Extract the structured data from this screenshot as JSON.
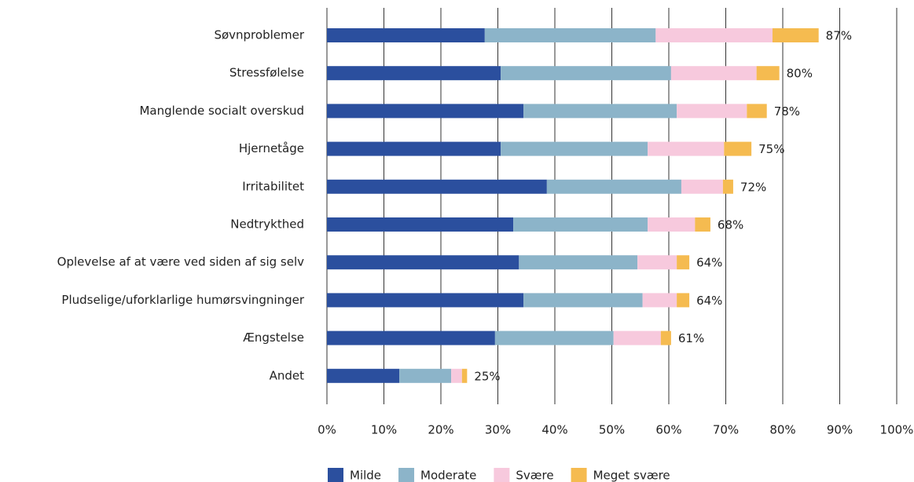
{
  "chart_data": {
    "type": "stacked_barh",
    "categories": [
      "Søvnproblemer",
      "Stressfølelse",
      "Manglende socialt overskud",
      "Hjernetåge",
      "Irritabilitet",
      "Nedtrykthed",
      "Oplevelse af at være ved siden af sig selv",
      "Pludselige/uforklarlige humørsvingninger",
      "Ængstelse",
      "Andet"
    ],
    "series": [
      {
        "name": "Milde",
        "color": "#2b4f9e",
        "values": [
          27.7,
          30.5,
          34.5,
          30.5,
          38.6,
          32.7,
          33.7,
          34.5,
          29.5,
          12.7
        ]
      },
      {
        "name": "Moderate",
        "color": "#8cb4c9",
        "values": [
          30.0,
          29.9,
          26.9,
          25.8,
          23.6,
          23.6,
          20.8,
          20.9,
          20.8,
          9.1
        ]
      },
      {
        "name": "Svære",
        "color": "#f7c9dd",
        "values": [
          20.5,
          15.0,
          12.3,
          13.4,
          7.3,
          8.3,
          6.9,
          6.0,
          8.3,
          1.9
        ]
      },
      {
        "name": "Meget svære",
        "color": "#f5bb50",
        "values": [
          8.1,
          4.0,
          3.5,
          4.8,
          1.8,
          2.7,
          2.2,
          2.2,
          1.8,
          0.9
        ]
      }
    ],
    "totals": {
      "values": [
        87,
        80,
        78,
        75,
        72,
        68,
        64,
        64,
        61,
        25
      ],
      "value_labels": [
        "87%",
        "80%",
        "78%",
        "75%",
        "72%",
        "68%",
        "64%",
        "64%",
        "61%",
        "25%"
      ]
    },
    "xlim": [
      0,
      100
    ],
    "xticks": [
      {
        "value": 0,
        "label": "0%"
      },
      {
        "value": 10,
        "label": "10%"
      },
      {
        "value": 20,
        "label": "20%"
      },
      {
        "value": 30,
        "label": "30%"
      },
      {
        "value": 40,
        "label": "40%"
      },
      {
        "value": 50,
        "label": "50%"
      },
      {
        "value": 60,
        "label": "60%"
      },
      {
        "value": 70,
        "label": "70%"
      },
      {
        "value": 80,
        "label": "80%"
      },
      {
        "value": 90,
        "label": "90%"
      },
      {
        "value": 100,
        "label": "100%"
      }
    ],
    "grid": true,
    "legend": "bottom"
  }
}
